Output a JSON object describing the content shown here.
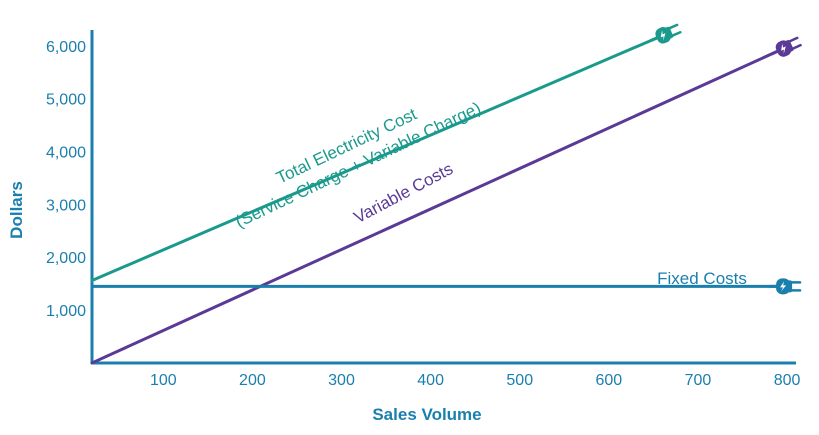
{
  "chart_data": {
    "type": "line",
    "xlabel": "Sales Volume",
    "ylabel": "Dollars",
    "xlim": [
      20,
      810
    ],
    "ylim": [
      -20,
      6300
    ],
    "x_ticks": [
      100,
      200,
      300,
      400,
      500,
      600,
      700,
      800
    ],
    "y_ticks": [
      1000,
      2000,
      3000,
      4000,
      5000,
      6000
    ],
    "x_tick_labels": [
      "100",
      "200",
      "300",
      "400",
      "500",
      "600",
      "700",
      "800"
    ],
    "y_tick_labels": [
      "1,000",
      "2,000",
      "3,000",
      "4,000",
      "5,000",
      "6,000"
    ],
    "grid": false,
    "series": [
      {
        "name_lines": [
          "Total Electricity Cost",
          "(Service Charge + Variable Charge)"
        ],
        "color": "#1a9a8c",
        "points": [
          [
            20,
            1560
          ],
          [
            665,
            6230
          ]
        ],
        "end_icon": "electric-plug-icon"
      },
      {
        "name": "Variable Costs",
        "color": "#5a3a96",
        "points": [
          [
            20,
            0
          ],
          [
            800,
            5980
          ]
        ],
        "end_icon": "electric-plug-icon"
      },
      {
        "name": "Fixed Costs",
        "color": "#1b7fae",
        "points": [
          [
            20,
            1450
          ],
          [
            800,
            1450
          ]
        ],
        "end_icon": "electric-plug-icon"
      }
    ]
  }
}
